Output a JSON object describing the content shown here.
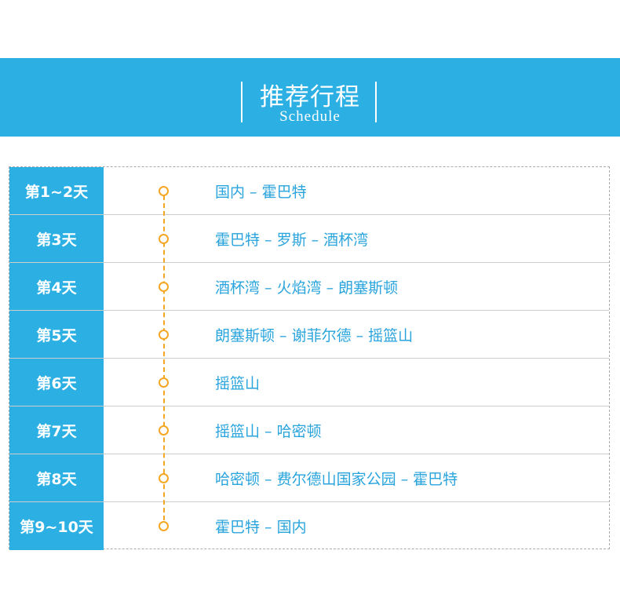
{
  "header": {
    "title": "推荐行程",
    "subtitle": "Schedule"
  },
  "colors": {
    "accent": "#2cb0e4",
    "timeline": "#f5a623"
  },
  "schedule": [
    {
      "day": "第1~2天",
      "route": "国内 – 霍巴特"
    },
    {
      "day": "第3天",
      "route": "霍巴特 – 罗斯 – 酒杯湾"
    },
    {
      "day": "第4天",
      "route": "酒杯湾 – 火焰湾 – 朗塞斯顿"
    },
    {
      "day": "第5天",
      "route": "朗塞斯顿 – 谢菲尔德 – 摇篮山"
    },
    {
      "day": "第6天",
      "route": "摇篮山"
    },
    {
      "day": "第7天",
      "route": "摇篮山 – 哈密顿"
    },
    {
      "day": "第8天",
      "route": "哈密顿 – 费尔德山国家公园 – 霍巴特"
    },
    {
      "day": "第9~10天",
      "route": "霍巴特 – 国内"
    }
  ]
}
